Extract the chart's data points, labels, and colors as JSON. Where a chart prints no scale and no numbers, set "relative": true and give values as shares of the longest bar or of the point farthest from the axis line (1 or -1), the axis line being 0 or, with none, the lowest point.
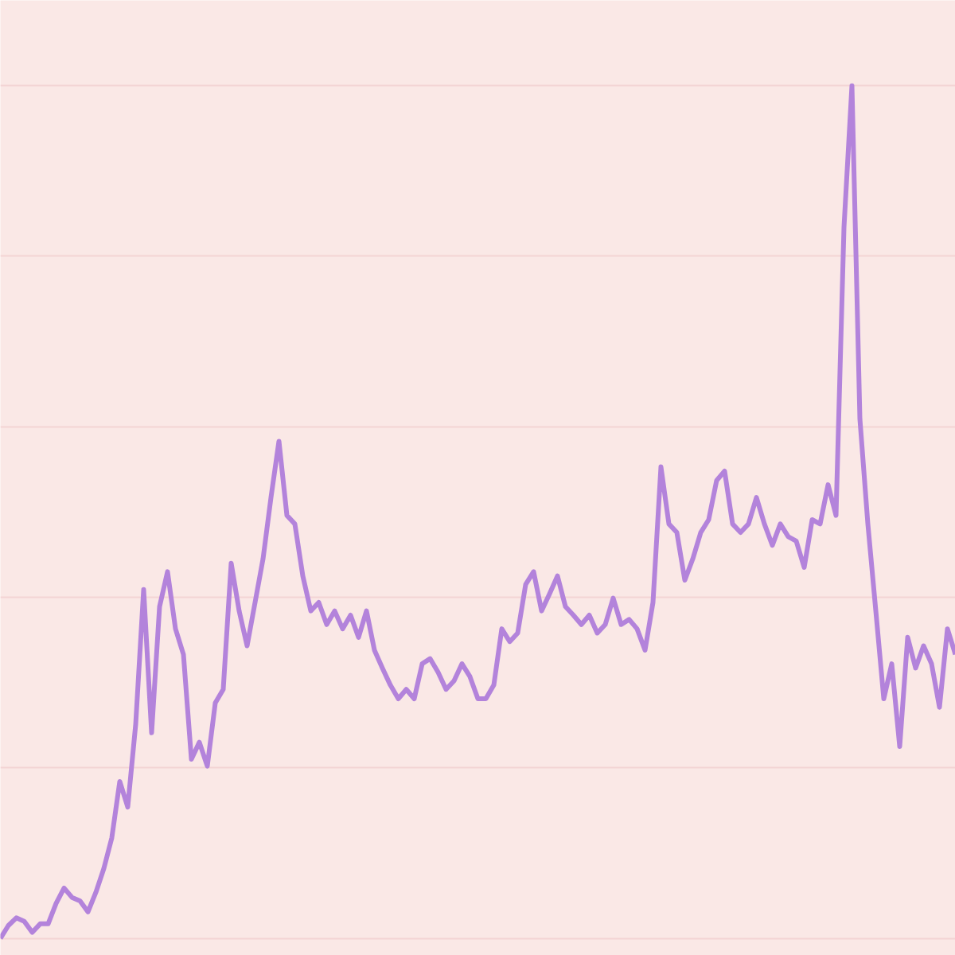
{
  "chart_data": {
    "type": "line",
    "relative": true,
    "grid": "y",
    "color": "#b383db",
    "categories": [
      null,
      null,
      null,
      null,
      null,
      null,
      null,
      null,
      null,
      null,
      null,
      null,
      null,
      null,
      null,
      null,
      null,
      null,
      null,
      null,
      null,
      null,
      null,
      null,
      null,
      null,
      null,
      null,
      null,
      null,
      null,
      null,
      null,
      null,
      null,
      null,
      null,
      null,
      null,
      null,
      null,
      null,
      null,
      null,
      null,
      null,
      null,
      null,
      null,
      null,
      null,
      null,
      null,
      null,
      null,
      null,
      null,
      null,
      null,
      null,
      null,
      null,
      null,
      null,
      null,
      null,
      null,
      null,
      null,
      null,
      null,
      null,
      null,
      null,
      null,
      null,
      null,
      null,
      null,
      null,
      null,
      null,
      null,
      null,
      null,
      null,
      null,
      null,
      null,
      null,
      null,
      null,
      null,
      null,
      null,
      null,
      null,
      null,
      null,
      null,
      null,
      null,
      null,
      null,
      null,
      null,
      null,
      null,
      null,
      null,
      null,
      null,
      null,
      null,
      null,
      null,
      null,
      null,
      null,
      null,
      null
    ],
    "values": [
      0,
      0.015,
      0.024,
      0.02,
      0.007,
      0.017,
      0.017,
      0.041,
      0.059,
      0.048,
      0.044,
      0.031,
      0.054,
      0.082,
      0.118,
      0.184,
      0.154,
      0.251,
      0.409,
      0.241,
      0.389,
      0.43,
      0.363,
      0.333,
      0.21,
      0.23,
      0.202,
      0.276,
      0.292,
      0.44,
      0.384,
      0.343,
      0.394,
      0.445,
      0.517,
      0.583,
      0.496,
      0.486,
      0.425,
      0.384,
      0.394,
      0.368,
      0.384,
      0.363,
      0.379,
      0.353,
      0.384,
      0.338,
      0.317,
      0.297,
      0.281,
      0.292,
      0.281,
      0.322,
      0.328,
      0.312,
      0.292,
      0.302,
      0.322,
      0.307,
      0.281,
      0.281,
      0.297,
      0.363,
      0.348,
      0.358,
      0.415,
      0.43,
      0.384,
      0.404,
      0.425,
      0.389,
      0.379,
      0.368,
      0.379,
      0.358,
      0.368,
      0.399,
      0.368,
      0.374,
      0.363,
      0.338,
      0.394,
      0.553,
      0.486,
      0.476,
      0.42,
      0.445,
      0.476,
      0.491,
      0.537,
      0.548,
      0.486,
      0.476,
      0.486,
      0.517,
      0.486,
      0.461,
      0.486,
      0.471,
      0.466,
      0.435,
      0.491,
      0.486,
      0.532,
      0.496,
      0.834,
      1,
      0.609,
      0.486,
      0.384,
      0.281,
      0.322,
      0.225,
      0.353,
      0.317,
      0.343,
      0.322,
      0.271,
      0.363,
      0.333
    ]
  }
}
